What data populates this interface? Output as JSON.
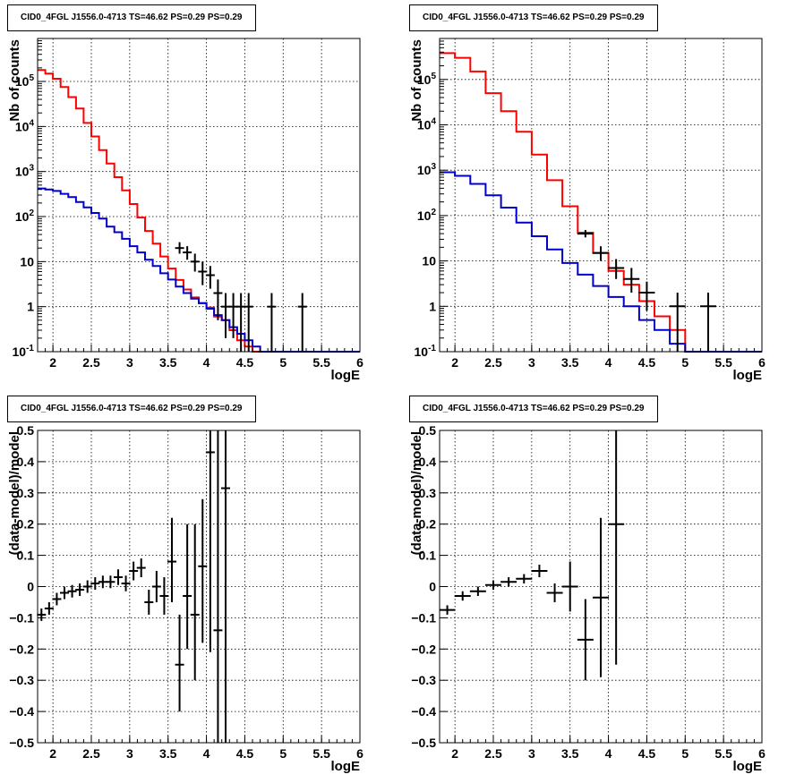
{
  "chart_data": [
    {
      "type": "step-line",
      "title": "CID0_4FGL J1556.0-4713 TS=46.62 PS=0.29 PS=0.29",
      "xlabel": "logE",
      "ylabel": "Nb of counts",
      "xlim": [
        1.8,
        6.0
      ],
      "ylim": [
        0.1,
        900000
      ],
      "yscale": "log",
      "grid": true,
      "x_ticks": [
        "2",
        "2.5",
        "3",
        "3.5",
        "4",
        "4.5",
        "5",
        "5.5",
        "6"
      ],
      "y_ticks": [
        "10^{-1}",
        "1",
        "10",
        "10^{2}",
        "10^{3}",
        "10^{4}",
        "10^{5}"
      ],
      "bin_edges": [
        1.8,
        1.9,
        2.0,
        2.1,
        2.2,
        2.3,
        2.4,
        2.5,
        2.6,
        2.7,
        2.8,
        2.9,
        3.0,
        3.1,
        3.2,
        3.3,
        3.4,
        3.5,
        3.6,
        3.7,
        3.8,
        3.9,
        4.0,
        4.1,
        4.2,
        4.3,
        4.4,
        4.5,
        4.6,
        4.7,
        4.8,
        4.9,
        5.0,
        5.1,
        5.2,
        5.3,
        5.4,
        5.5,
        5.6,
        5.7,
        5.8,
        5.9,
        6.0
      ],
      "series": [
        {
          "color": "#ff0000",
          "values": [
            180000,
            150000,
            115000,
            75000,
            45000,
            25000,
            12000,
            6000,
            3000,
            1500,
            750,
            380,
            190,
            95,
            48,
            25,
            13,
            7,
            3.9,
            2.4,
            1.6,
            1.2,
            0.95,
            0.6,
            0.5,
            0.3,
            0.18,
            0.13,
            0.1,
            0.1,
            0.1,
            0.1,
            0.1,
            0.1,
            0.1,
            0.1,
            0.1,
            0.1,
            0.1,
            0.1,
            0.1,
            0.1
          ]
        },
        {
          "color": "#0000cc",
          "values": [
            420,
            400,
            370,
            320,
            270,
            210,
            160,
            120,
            90,
            60,
            45,
            32,
            22,
            16,
            11,
            8,
            5.5,
            4,
            2.8,
            2,
            1.5,
            1.2,
            0.9,
            0.65,
            0.5,
            0.35,
            0.25,
            0.18,
            0.13,
            0.1,
            0.1,
            0.1,
            0.1,
            0.1,
            0.1,
            0.1,
            0.1,
            0.1,
            0.1,
            0.1,
            0.1,
            0.1
          ]
        }
      ],
      "points": {
        "x": [
          3.65,
          3.75,
          3.85,
          3.95,
          4.05,
          4.15,
          4.25,
          4.35,
          4.45,
          4.55,
          4.85,
          5.25
        ],
        "y": [
          20,
          16,
          10,
          6,
          5,
          2,
          1,
          1,
          1,
          1,
          1,
          1
        ],
        "ylow": [
          15,
          11,
          6,
          3,
          2.5,
          0.5,
          0.2,
          0.2,
          0.1,
          0.1,
          0.1,
          0.1
        ],
        "yhigh": [
          27,
          22,
          15,
          10,
          8,
          4,
          2,
          2,
          2,
          2,
          2,
          2
        ]
      }
    },
    {
      "type": "step-line",
      "title": "CID0_4FGL J1556.0-4713 TS=46.62 PS=0.29 PS=0.29",
      "xlabel": "logE",
      "ylabel": "Nb of counts",
      "xlim": [
        1.8,
        6.0
      ],
      "ylim": [
        0.1,
        800000
      ],
      "yscale": "log",
      "grid": true,
      "x_ticks": [
        "2",
        "2.5",
        "3",
        "3.5",
        "4",
        "4.5",
        "5",
        "5.5",
        "6"
      ],
      "y_ticks": [
        "10^{-1}",
        "1",
        "10",
        "10^{2}",
        "10^{3}",
        "10^{4}",
        "10^{5}"
      ],
      "bin_edges": [
        1.8,
        2.0,
        2.2,
        2.4,
        2.6,
        2.8,
        3.0,
        3.2,
        3.4,
        3.6,
        3.8,
        4.0,
        4.2,
        4.4,
        4.6,
        4.8,
        5.0,
        5.2,
        5.4,
        5.6,
        5.8,
        6.0
      ],
      "series": [
        {
          "color": "#ff0000",
          "values": [
            380000,
            300000,
            150000,
            50000,
            20000,
            7000,
            2200,
            600,
            160,
            42,
            15,
            6,
            3,
            1.3,
            0.6,
            0.3,
            0.1,
            0.1,
            0.1,
            0.1,
            0.1
          ]
        },
        {
          "color": "#0000cc",
          "values": [
            900,
            750,
            500,
            280,
            150,
            70,
            35,
            18,
            9,
            5,
            2.8,
            1.6,
            1,
            0.5,
            0.3,
            0.15,
            0.1,
            0.1,
            0.1,
            0.1,
            0.1
          ]
        }
      ],
      "points": {
        "x": [
          3.7,
          3.9,
          4.1,
          4.3,
          4.5,
          4.9,
          5.3
        ],
        "y": [
          40,
          15,
          7,
          4,
          2,
          1,
          1
        ],
        "ylow": [
          33,
          10,
          4,
          2,
          0.8,
          0.1,
          0.1
        ],
        "yhigh": [
          48,
          21,
          11,
          7,
          3.5,
          2,
          2
        ]
      }
    },
    {
      "type": "scatter",
      "title": "CID0_4FGL J1556.0-4713 TS=46.62 PS=0.29 PS=0.29",
      "xlabel": "logE",
      "ylabel": "(data-model)/model",
      "xlim": [
        1.8,
        6.0
      ],
      "ylim": [
        -0.5,
        0.5
      ],
      "yscale": "linear",
      "grid": true,
      "x_ticks": [
        "2",
        "2.5",
        "3",
        "3.5",
        "4",
        "4.5",
        "5",
        "5.5",
        "6"
      ],
      "y_ticks": [
        "−0.5",
        "−0.4",
        "−0.3",
        "−0.2",
        "−0.1",
        "0",
        "0.1",
        "0.2",
        "0.3",
        "0.4",
        "0.5"
      ],
      "points": {
        "x": [
          1.85,
          1.95,
          2.05,
          2.15,
          2.25,
          2.35,
          2.45,
          2.55,
          2.65,
          2.75,
          2.85,
          2.95,
          3.05,
          3.15,
          3.25,
          3.35,
          3.45,
          3.55,
          3.65,
          3.75,
          3.85,
          3.95,
          4.05,
          4.15,
          4.25
        ],
        "y": [
          -0.09,
          -0.07,
          -0.04,
          -0.02,
          -0.015,
          -0.01,
          0,
          0.01,
          0.015,
          0.015,
          0.03,
          0.01,
          0.05,
          0.06,
          -0.05,
          0,
          -0.03,
          0.08,
          -0.25,
          -0.03,
          -0.09,
          0.065,
          0.43,
          -0.14,
          0.315
        ],
        "ylow": [
          -0.11,
          -0.09,
          -0.06,
          -0.04,
          -0.035,
          -0.03,
          -0.02,
          -0.01,
          -0.005,
          -0.005,
          0.005,
          -0.015,
          0.02,
          0.03,
          -0.09,
          -0.05,
          -0.09,
          -0.05,
          -0.4,
          -0.2,
          -0.3,
          -0.18,
          -0.21,
          -0.5,
          -0.5
        ],
        "yhigh": [
          -0.07,
          -0.05,
          -0.02,
          0,
          0.005,
          0.01,
          0.02,
          0.03,
          0.035,
          0.035,
          0.055,
          0.035,
          0.08,
          0.09,
          -0.01,
          0.05,
          0.03,
          0.22,
          -0.09,
          0.2,
          0.2,
          0.28,
          0.5,
          0.5,
          0.5
        ]
      }
    },
    {
      "type": "scatter",
      "title": "CID0_4FGL J1556.0-4713 TS=46.62 PS=0.29 PS=0.29",
      "xlabel": "logE",
      "ylabel": "(data-model)/model",
      "xlim": [
        1.8,
        6.0
      ],
      "ylim": [
        -0.5,
        0.5
      ],
      "yscale": "linear",
      "grid": true,
      "x_ticks": [
        "2",
        "2.5",
        "3",
        "3.5",
        "4",
        "4.5",
        "5",
        "5.5",
        "6"
      ],
      "y_ticks": [
        "−0.5",
        "−0.4",
        "−0.3",
        "−0.2",
        "−0.1",
        "0",
        "0.1",
        "0.2",
        "0.3",
        "0.4",
        "0.5"
      ],
      "points": {
        "x": [
          1.9,
          2.1,
          2.3,
          2.5,
          2.7,
          2.9,
          3.1,
          3.3,
          3.5,
          3.7,
          3.9,
          4.1
        ],
        "y": [
          -0.075,
          -0.03,
          -0.015,
          0.005,
          0.015,
          0.025,
          0.05,
          -0.02,
          0,
          -0.17,
          -0.035,
          0.2
        ],
        "ylow": [
          -0.09,
          -0.045,
          -0.03,
          -0.01,
          0,
          0.01,
          0.03,
          -0.05,
          -0.08,
          -0.3,
          -0.29,
          -0.25
        ],
        "yhigh": [
          -0.06,
          -0.015,
          0,
          0.02,
          0.03,
          0.04,
          0.07,
          0.01,
          0.08,
          -0.04,
          0.22,
          0.5
        ]
      }
    }
  ]
}
